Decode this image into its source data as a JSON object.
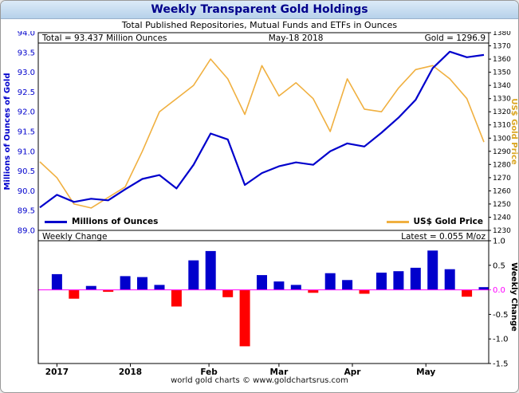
{
  "window": {
    "title": "Weekly Transparent Gold Holdings",
    "subtitle": "Total Published Repositories, Mutual Funds and ETFs in Ounces",
    "footer": "world gold charts   © www.goldchartsrus.com"
  },
  "colors": {
    "holdings": "#0000CC",
    "gold": "#F0B040",
    "bar_up": "#0000CC",
    "bar_down": "#FF0000",
    "zero_line": "#FF00FF",
    "axis_left_text": "#0000CC",
    "gold_axis_label": "#DAA520",
    "title_text": "#00008B"
  },
  "chart_data": {
    "type": "line+bar",
    "annotations": {
      "total": "Total = 93.437 Million Ounces",
      "date": "May-18 2018",
      "gold": "Gold = 1296.9",
      "bottom_title": "Weekly Change",
      "bottom_latest": "Latest = 0.055 M/oz"
    },
    "x_ticks": [
      {
        "label": "2017",
        "pos": 1
      },
      {
        "label": "2018",
        "pos": 5.3
      },
      {
        "label": "Feb",
        "pos": 9.9
      },
      {
        "label": "Mar",
        "pos": 14
      },
      {
        "label": "Apr",
        "pos": 18.3
      },
      {
        "label": "May",
        "pos": 22.6
      }
    ],
    "top_panel": {
      "left_axis": {
        "label": "Millions of Ounces of Gold",
        "min": 89.0,
        "max": 94.0,
        "tick_step": 0.5
      },
      "right_axis": {
        "label": "US$ Gold Price",
        "min": 1230,
        "max": 1380,
        "tick_step": 10
      },
      "series": [
        {
          "name": "Millions of Ounces",
          "axis": "left",
          "color_key": "holdings",
          "values": [
            89.58,
            89.9,
            89.72,
            89.8,
            89.76,
            90.04,
            90.3,
            90.4,
            90.06,
            90.66,
            91.45,
            91.3,
            90.15,
            90.45,
            90.62,
            90.72,
            90.66,
            91.0,
            91.2,
            91.12,
            91.47,
            91.85,
            92.3,
            93.1,
            93.52,
            93.38,
            93.437
          ]
        },
        {
          "name": "US$ Gold Price",
          "axis": "right",
          "color_key": "gold",
          "values": [
            1282,
            1270,
            1250,
            1247,
            1255,
            1263,
            1290,
            1320,
            1330,
            1340,
            1360,
            1345,
            1318,
            1355,
            1332,
            1342,
            1330,
            1305,
            1345,
            1322,
            1320,
            1338,
            1352,
            1355,
            1345,
            1330,
            1297
          ]
        }
      ]
    },
    "bottom_panel": {
      "right_axis": {
        "label": "Weekly Change",
        "min": -1.5,
        "max": 1.0,
        "tick_step": 0.5
      },
      "bars": [
        0.32,
        -0.18,
        0.08,
        -0.04,
        0.28,
        0.26,
        0.1,
        -0.34,
        0.6,
        0.79,
        -0.15,
        -1.15,
        0.3,
        0.17,
        0.1,
        -0.06,
        0.34,
        0.2,
        -0.08,
        0.35,
        0.38,
        0.45,
        0.8,
        0.42,
        -0.14,
        0.055
      ]
    }
  }
}
